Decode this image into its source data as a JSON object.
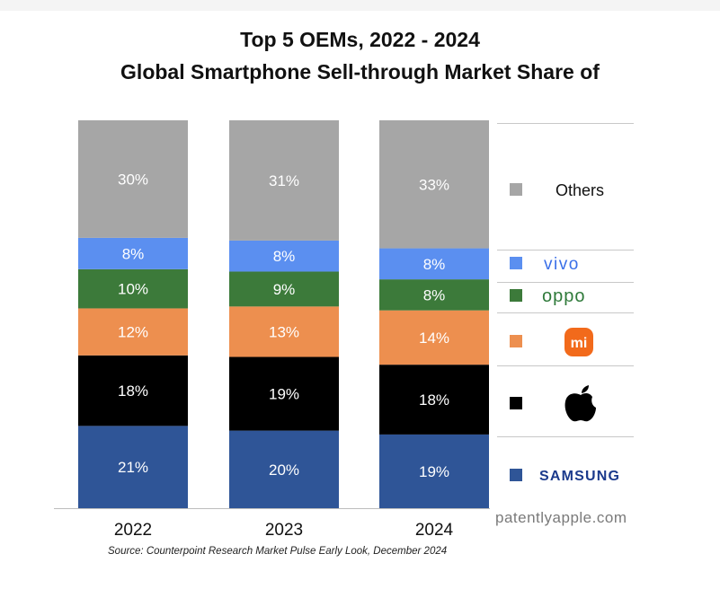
{
  "titles": {
    "line1": "Top 5 OEMs, 2022 - 2024",
    "line2": "Global Smartphone Sell-through Market Share of"
  },
  "source": "Source: Counterpoint Research Market Pulse Early Look, December 2024",
  "watermark": "patentlyapple.com",
  "chart_data": {
    "type": "bar",
    "stacked": true,
    "percent_stacked": true,
    "title": "Top 5 OEMs, 2022 - 2024 Global Smartphone Sell-through Market Share of",
    "categories": [
      "2022",
      "2023",
      "2024"
    ],
    "series": [
      {
        "name": "SAMSUNG",
        "values": [
          21,
          20,
          19
        ],
        "labels": [
          "21%",
          "20%",
          "19%"
        ],
        "color": "#2f5597"
      },
      {
        "name": "apple-logo",
        "values": [
          18,
          19,
          18
        ],
        "labels": [
          "18%",
          "19%",
          "18%"
        ],
        "color": "#000000"
      },
      {
        "name": "mi",
        "values": [
          12,
          13,
          14
        ],
        "labels": [
          "12%",
          "13%",
          "14%"
        ],
        "color": "#ed8f4f"
      },
      {
        "name": "OPPO",
        "values": [
          10,
          9,
          8
        ],
        "labels": [
          "10%",
          "9%",
          "8%"
        ],
        "color": "#3c7a3a"
      },
      {
        "name": "VIVO",
        "values": [
          8,
          8,
          8
        ],
        "labels": [
          "8%",
          "8%",
          "8%"
        ],
        "color": "#5b8ff0"
      },
      {
        "name": "Others",
        "values": [
          30,
          31,
          33
        ],
        "labels": [
          "30%",
          "31%",
          "33%"
        ],
        "color": "#a6a6a6"
      }
    ],
    "ylim": [
      0,
      100
    ],
    "legend": {
      "position": "right",
      "entries": [
        {
          "label": "Others",
          "kind": "text",
          "color": "#a6a6a6"
        },
        {
          "label": "vivo",
          "kind": "vivo",
          "color": "#5b8ff0"
        },
        {
          "label": "oppo",
          "kind": "oppo",
          "color": "#3c7a3a"
        },
        {
          "label": "mi",
          "kind": "mi",
          "color": "#ed8f4f"
        },
        {
          "label": "",
          "kind": "apple",
          "color": "#000000"
        },
        {
          "label": "SAMSUNG",
          "kind": "samsung",
          "color": "#2f5597"
        }
      ]
    },
    "grid": false,
    "axis_line": true
  }
}
